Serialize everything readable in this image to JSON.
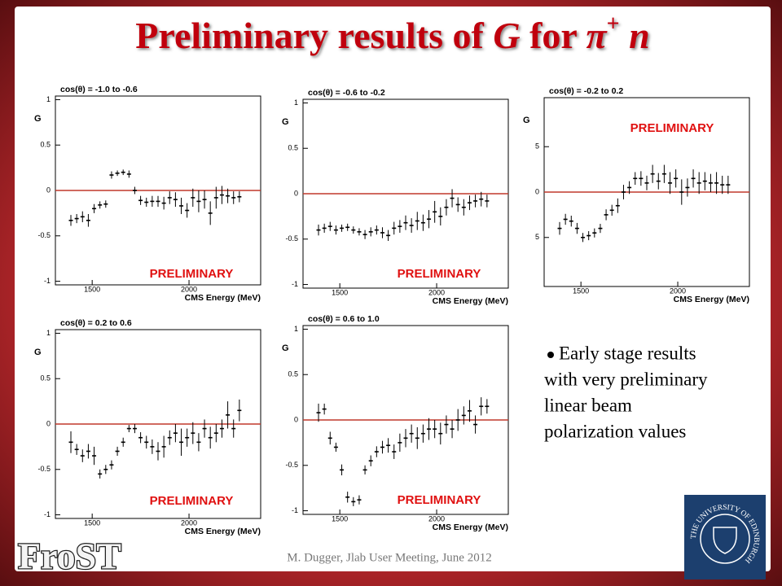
{
  "slide_title": [
    "Preliminary results of ",
    "G",
    " for ",
    "π",
    "+",
    " n"
  ],
  "bullet": [
    "Early stage results",
    "with very preliminary",
    "linear beam",
    "polarization values"
  ],
  "footer": "M. Dugger, Jlab User Meeting, June 2012",
  "logo_left": "FroST",
  "logo_right": "THE UNIVERSITY OF EDINBURGH",
  "chart_data": [
    {
      "type": "errorbar",
      "title": "cos(θ) = -1.0 to -0.6",
      "y_label": "G",
      "x_label": "CMS Energy (MeV)",
      "watermark": "PRELIMINARY",
      "xlim": [
        1310,
        2370
      ],
      "ylim": [
        -1.04,
        1.04
      ],
      "xticks": [
        1500,
        2000
      ],
      "yticks": [
        -1,
        -0.5,
        0,
        0.5,
        1
      ],
      "refline": 0,
      "refline_color": "#c0392b",
      "color": "#000000",
      "x": [
        1390,
        1420,
        1450,
        1480,
        1510,
        1540,
        1570,
        1600,
        1630,
        1660,
        1690,
        1720,
        1750,
        1780,
        1810,
        1840,
        1870,
        1900,
        1930,
        1960,
        1990,
        2020,
        2050,
        2080,
        2110,
        2140,
        2170,
        2200,
        2230,
        2260
      ],
      "values": [
        -0.33,
        -0.31,
        -0.29,
        -0.33,
        -0.2,
        -0.16,
        -0.15,
        0.17,
        0.19,
        0.2,
        0.18,
        0.0,
        -0.11,
        -0.13,
        -0.12,
        -0.12,
        -0.14,
        -0.08,
        -0.1,
        -0.17,
        -0.22,
        -0.08,
        -0.12,
        -0.1,
        -0.25,
        -0.08,
        -0.05,
        -0.06,
        -0.08,
        -0.07
      ],
      "errors": [
        0.06,
        0.05,
        0.06,
        0.07,
        0.05,
        0.04,
        0.04,
        0.04,
        0.03,
        0.03,
        0.04,
        0.04,
        0.05,
        0.05,
        0.06,
        0.06,
        0.07,
        0.07,
        0.08,
        0.09,
        0.08,
        0.1,
        0.12,
        0.1,
        0.13,
        0.12,
        0.1,
        0.08,
        0.07,
        0.06
      ]
    },
    {
      "type": "errorbar",
      "title": "cos(θ) = -0.6 to -0.2",
      "y_label": "G",
      "x_label": "CMS Energy (MeV)",
      "watermark": "PRELIMINARY",
      "xlim": [
        1310,
        2370
      ],
      "ylim": [
        -1.04,
        1.04
      ],
      "xticks": [
        1500,
        2000
      ],
      "yticks": [
        -1,
        -0.5,
        0,
        0.5,
        1
      ],
      "refline": 0,
      "refline_color": "#c0392b",
      "color": "#000000",
      "x": [
        1390,
        1420,
        1450,
        1480,
        1510,
        1540,
        1570,
        1600,
        1630,
        1660,
        1690,
        1720,
        1750,
        1780,
        1810,
        1840,
        1870,
        1900,
        1930,
        1960,
        1990,
        2020,
        2050,
        2080,
        2110,
        2140,
        2170,
        2200,
        2230,
        2260
      ],
      "values": [
        -0.4,
        -0.38,
        -0.36,
        -0.4,
        -0.38,
        -0.37,
        -0.4,
        -0.42,
        -0.45,
        -0.42,
        -0.4,
        -0.43,
        -0.46,
        -0.38,
        -0.36,
        -0.32,
        -0.35,
        -0.3,
        -0.32,
        -0.28,
        -0.2,
        -0.25,
        -0.15,
        -0.05,
        -0.12,
        -0.15,
        -0.1,
        -0.08,
        -0.06,
        -0.08
      ],
      "errors": [
        0.06,
        0.05,
        0.05,
        0.05,
        0.04,
        0.04,
        0.04,
        0.04,
        0.05,
        0.05,
        0.05,
        0.06,
        0.06,
        0.07,
        0.07,
        0.08,
        0.08,
        0.1,
        0.09,
        0.1,
        0.12,
        0.1,
        0.09,
        0.1,
        0.08,
        0.09,
        0.08,
        0.07,
        0.08,
        0.07
      ]
    },
    {
      "type": "errorbar",
      "title": "cos(θ) = -0.2 to 0.2",
      "y_label": "G",
      "x_label": "CMS Energy (MeV)",
      "watermark": "PRELIMINARY",
      "xlim": [
        1310,
        2370
      ],
      "ylim": [
        -1.04,
        1.04
      ],
      "xticks": [
        1500,
        2000
      ],
      "yticks": [
        {
          "value": -0.5,
          "label": "5"
        },
        0,
        {
          "value": 0.5,
          "label": "5"
        }
      ],
      "refline": 0,
      "refline_color": "#c0392b",
      "color": "#000000",
      "x": [
        1390,
        1420,
        1450,
        1480,
        1510,
        1540,
        1570,
        1600,
        1630,
        1660,
        1690,
        1720,
        1750,
        1780,
        1810,
        1840,
        1870,
        1900,
        1930,
        1960,
        1990,
        2020,
        2050,
        2080,
        2110,
        2140,
        2170,
        2200,
        2230,
        2260
      ],
      "values": [
        -0.4,
        -0.3,
        -0.32,
        -0.4,
        -0.5,
        -0.48,
        -0.45,
        -0.4,
        -0.25,
        -0.2,
        -0.15,
        0.0,
        0.05,
        0.15,
        0.15,
        0.1,
        0.2,
        0.12,
        0.2,
        0.1,
        0.15,
        0.0,
        0.05,
        0.15,
        0.1,
        0.12,
        0.1,
        0.1,
        0.08,
        0.08
      ],
      "errors": [
        0.07,
        0.06,
        0.06,
        0.06,
        0.05,
        0.05,
        0.05,
        0.05,
        0.06,
        0.06,
        0.08,
        0.08,
        0.07,
        0.07,
        0.08,
        0.08,
        0.1,
        0.09,
        0.1,
        0.12,
        0.1,
        0.14,
        0.1,
        0.1,
        0.12,
        0.1,
        0.1,
        0.12,
        0.1,
        0.1
      ]
    },
    {
      "type": "errorbar",
      "title": "cos(θ) = 0.2 to 0.6",
      "y_label": "G",
      "x_label": "CMS Energy (MeV)",
      "watermark": "PRELIMINARY",
      "xlim": [
        1310,
        2370
      ],
      "ylim": [
        -1.04,
        1.04
      ],
      "xticks": [
        1500,
        2000
      ],
      "yticks": [
        -1,
        -0.5,
        0,
        0.5,
        1
      ],
      "refline": 0,
      "refline_color": "#c0392b",
      "color": "#000000",
      "x": [
        1390,
        1420,
        1450,
        1480,
        1510,
        1540,
        1570,
        1600,
        1630,
        1660,
        1690,
        1720,
        1750,
        1780,
        1810,
        1840,
        1870,
        1900,
        1930,
        1960,
        1990,
        2020,
        2050,
        2080,
        2110,
        2140,
        2170,
        2200,
        2230,
        2260
      ],
      "values": [
        -0.2,
        -0.28,
        -0.35,
        -0.3,
        -0.35,
        -0.55,
        -0.5,
        -0.45,
        -0.3,
        -0.2,
        -0.05,
        -0.05,
        -0.15,
        -0.2,
        -0.25,
        -0.3,
        -0.25,
        -0.15,
        -0.1,
        -0.2,
        -0.15,
        -0.1,
        -0.2,
        -0.05,
        -0.15,
        -0.1,
        -0.05,
        0.1,
        -0.05,
        0.15
      ],
      "errors": [
        0.12,
        0.06,
        0.07,
        0.08,
        0.1,
        0.05,
        0.05,
        0.05,
        0.05,
        0.05,
        0.04,
        0.05,
        0.06,
        0.07,
        0.08,
        0.1,
        0.12,
        0.08,
        0.1,
        0.15,
        0.1,
        0.12,
        0.1,
        0.1,
        0.12,
        0.1,
        0.1,
        0.15,
        0.1,
        0.12
      ]
    },
    {
      "type": "errorbar",
      "title": "cos(θ) = 0.6 to 1.0",
      "y_label": "G",
      "x_label": "CMS Energy (MeV)",
      "watermark": "PRELIMINARY",
      "xlim": [
        1310,
        2370
      ],
      "ylim": [
        -1.04,
        1.04
      ],
      "xticks": [
        1500,
        2000
      ],
      "yticks": [
        -1,
        -0.5,
        0,
        0.5,
        1
      ],
      "refline": 0,
      "refline_color": "#c0392b",
      "color": "#000000",
      "x": [
        1390,
        1420,
        1450,
        1480,
        1510,
        1540,
        1570,
        1600,
        1630,
        1660,
        1690,
        1720,
        1750,
        1780,
        1810,
        1840,
        1870,
        1900,
        1930,
        1960,
        1990,
        2020,
        2050,
        2080,
        2110,
        2140,
        2170,
        2200,
        2230,
        2260
      ],
      "values": [
        0.08,
        0.12,
        -0.2,
        -0.3,
        -0.55,
        -0.85,
        -0.9,
        -0.88,
        -0.55,
        -0.45,
        -0.35,
        -0.3,
        -0.28,
        -0.35,
        -0.25,
        -0.2,
        -0.15,
        -0.2,
        -0.15,
        -0.1,
        -0.1,
        -0.15,
        -0.05,
        -0.1,
        0.0,
        0.05,
        0.1,
        -0.05,
        0.15,
        0.15
      ],
      "errors": [
        0.1,
        0.06,
        0.07,
        0.05,
        0.06,
        0.06,
        0.05,
        0.05,
        0.05,
        0.06,
        0.06,
        0.07,
        0.08,
        0.08,
        0.1,
        0.1,
        0.1,
        0.12,
        0.1,
        0.12,
        0.1,
        0.12,
        0.1,
        0.1,
        0.12,
        0.1,
        0.12,
        0.1,
        0.1,
        0.08
      ]
    }
  ]
}
